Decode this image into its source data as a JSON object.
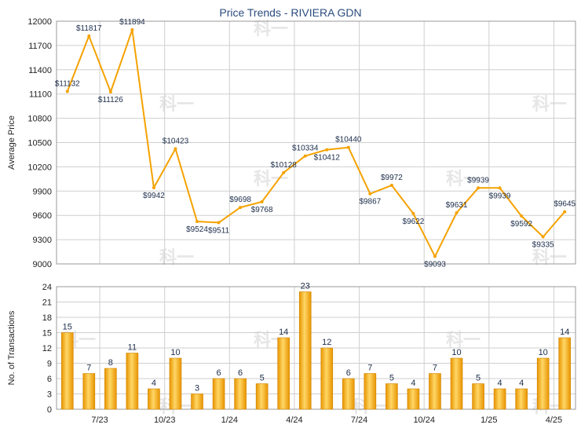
{
  "title": "Price Trends - RIVIERA GDN",
  "watermark_text": "科一",
  "colors": {
    "line": "#f5a200",
    "bar_light": "#ffd766",
    "bar_dark": "#e89400",
    "bar_edge": "#d08400",
    "grid": "#cfcfcf",
    "title": "#2b4c7e"
  },
  "chart_data": [
    {
      "type": "line",
      "title": "Price Trends - RIVIERA GDN",
      "ylabel": "Average Price",
      "ylim": [
        9000,
        12000
      ],
      "yticks": [
        9000,
        9300,
        9600,
        9900,
        10200,
        10500,
        10800,
        11100,
        11400,
        11700,
        12000
      ],
      "x_ticks": [
        "7/23",
        "10/23",
        "1/24",
        "4/24",
        "7/24",
        "10/24",
        "1/25",
        "4/25"
      ],
      "grid": true,
      "values": [
        11132,
        11817,
        11126,
        11894,
        9942,
        10423,
        9524,
        9511,
        9698,
        9768,
        10128,
        10334,
        10412,
        10440,
        9867,
        9972,
        9622,
        9093,
        9631,
        9939,
        9939,
        9592,
        9335,
        9645
      ],
      "labels": [
        "$11132",
        "$11817",
        "$11126",
        "$11894",
        "$9942",
        "$10423",
        "$9524",
        "$9511",
        "$9698",
        "$9768",
        "$10128",
        "$10334",
        "$10412",
        "$10440",
        "$9867",
        "$9972",
        "$9622",
        "$9093",
        "$9631",
        "$9939",
        "$9939",
        "$9592",
        "$9335",
        "$9645"
      ]
    },
    {
      "type": "bar",
      "ylabel": "No. of Transactions",
      "ylim": [
        0,
        24
      ],
      "yticks": [
        0,
        3,
        6,
        9,
        12,
        15,
        18,
        21,
        24
      ],
      "x_ticks": [
        "7/23",
        "10/23",
        "1/24",
        "4/24",
        "7/24",
        "10/24",
        "1/25",
        "4/25"
      ],
      "grid": true,
      "values": [
        15,
        7,
        8,
        11,
        4,
        10,
        3,
        6,
        6,
        5,
        14,
        23,
        12,
        6,
        7,
        5,
        4,
        7,
        10,
        5,
        4,
        4,
        10,
        14
      ]
    }
  ]
}
